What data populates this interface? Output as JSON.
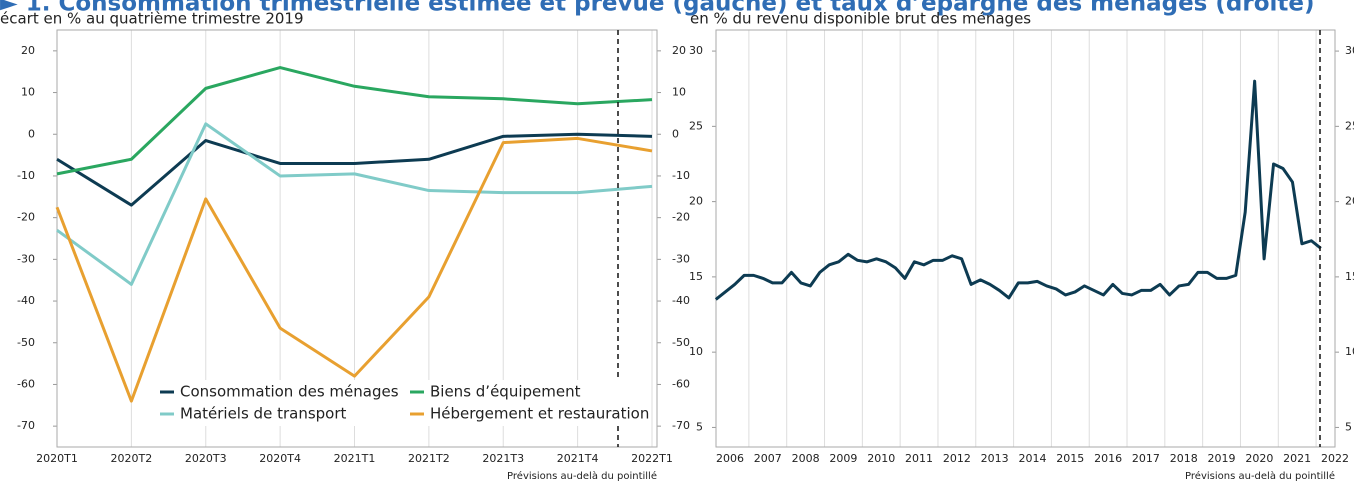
{
  "title": "► 1. Consommation trimestrielle estimée et prévue (gauche) et taux d’épargne des ménages (droite)",
  "chart_data": [
    {
      "type": "line",
      "subtitle": "écart en % au quatrième trimestre 2019",
      "note": "Prévisions au-delà du pointillé",
      "categories": [
        "2020T1",
        "2020T2",
        "2020T3",
        "2020T4",
        "2021T1",
        "2021T2",
        "2021T3",
        "2021T4",
        "2022T1"
      ],
      "series": [
        {
          "name": "Consommation des ménages",
          "color": "#0d3b52",
          "values": [
            -6,
            -17,
            -1.5,
            -7,
            -7,
            -6,
            -0.5,
            0,
            -0.5
          ]
        },
        {
          "name": "Biens d’équipement",
          "color": "#2aa760",
          "values": [
            -9.5,
            -6,
            11,
            16,
            11.5,
            9,
            8.5,
            7.3,
            8.3
          ]
        },
        {
          "name": "Matériels de transport",
          "color": "#80cbc8",
          "values": [
            -23,
            -36,
            2.5,
            -10,
            -9.5,
            -13.5,
            -14,
            -14,
            -12.5
          ]
        },
        {
          "name": "Hébergement et restauration",
          "color": "#e8a030",
          "values": [
            -17.5,
            -64,
            -15.5,
            -46.5,
            -58,
            -39,
            -2,
            -1,
            -4
          ]
        }
      ],
      "ylim": [
        -75,
        25
      ],
      "yticks": [
        20,
        10,
        0,
        -10,
        -20,
        -30,
        -40,
        -50,
        -60,
        -70
      ],
      "grid": "x"
    },
    {
      "type": "line",
      "subtitle": "en % du revenu disponible brut des ménages",
      "note": "Prévisions au-delà du pointillé",
      "x": [
        2006.125,
        2006.375,
        2006.625,
        2006.875,
        2007.125,
        2007.375,
        2007.625,
        2007.875,
        2008.125,
        2008.375,
        2008.625,
        2008.875,
        2009.125,
        2009.375,
        2009.625,
        2009.875,
        2010.125,
        2010.375,
        2010.625,
        2010.875,
        2011.125,
        2011.375,
        2011.625,
        2011.875,
        2012.125,
        2012.375,
        2012.625,
        2012.875,
        2013.125,
        2013.375,
        2013.625,
        2013.875,
        2014.125,
        2014.375,
        2014.625,
        2014.875,
        2015.125,
        2015.375,
        2015.625,
        2015.875,
        2016.125,
        2016.375,
        2016.625,
        2016.875,
        2017.125,
        2017.375,
        2017.625,
        2017.875,
        2018.125,
        2018.375,
        2018.625,
        2018.875,
        2019.125,
        2019.375,
        2019.625,
        2019.875,
        2020.125,
        2020.375,
        2020.625,
        2020.875,
        2021.125,
        2021.375,
        2021.625,
        2021.875,
        2022.125
      ],
      "series": [
        {
          "color": "#0d3b52",
          "values": [
            13.5,
            14.0,
            14.5,
            15.1,
            15.1,
            14.9,
            14.6,
            14.6,
            15.3,
            14.6,
            14.4,
            15.3,
            15.8,
            16.0,
            16.5,
            16.1,
            16.0,
            16.2,
            16.0,
            15.6,
            14.9,
            16.0,
            15.8,
            16.1,
            16.1,
            16.4,
            16.2,
            14.5,
            14.8,
            14.5,
            14.1,
            13.6,
            14.6,
            14.6,
            14.7,
            14.4,
            14.2,
            13.8,
            14.0,
            14.4,
            14.1,
            13.8,
            14.5,
            13.9,
            13.8,
            14.1,
            14.1,
            14.5,
            13.8,
            14.4,
            14.5,
            15.3,
            15.3,
            14.9,
            14.9,
            15.1,
            19.3,
            28.0,
            16.2,
            22.5,
            22.2,
            21.3,
            17.2,
            17.4,
            16.9
          ]
        }
      ],
      "xlim": [
        2006.13,
        2022.5
      ],
      "xticks": [
        {
          "value": 2006.5,
          "label": "2006"
        },
        {
          "value": 2007.5,
          "label": "2007"
        },
        {
          "value": 2008.5,
          "label": "2008"
        },
        {
          "value": 2009.5,
          "label": "2009"
        },
        {
          "value": 2010.5,
          "label": "2010"
        },
        {
          "value": 2011.5,
          "label": "2011"
        },
        {
          "value": 2012.5,
          "label": "2012"
        },
        {
          "value": 2013.5,
          "label": "2013"
        },
        {
          "value": 2014.5,
          "label": "2014"
        },
        {
          "value": 2015.5,
          "label": "2015"
        },
        {
          "value": 2016.5,
          "label": "2016"
        },
        {
          "value": 2017.5,
          "label": "2017"
        },
        {
          "value": 2018.5,
          "label": "2018"
        },
        {
          "value": 2019.5,
          "label": "2019"
        },
        {
          "value": 2020.5,
          "label": "2020"
        },
        {
          "value": 2021.5,
          "label": "2021"
        },
        {
          "value": 2022.5,
          "label": "2022"
        }
      ],
      "ylim": [
        3.7,
        31.4
      ],
      "yticks": [
        30,
        25,
        20,
        15,
        10,
        5
      ],
      "grid": "x"
    }
  ]
}
